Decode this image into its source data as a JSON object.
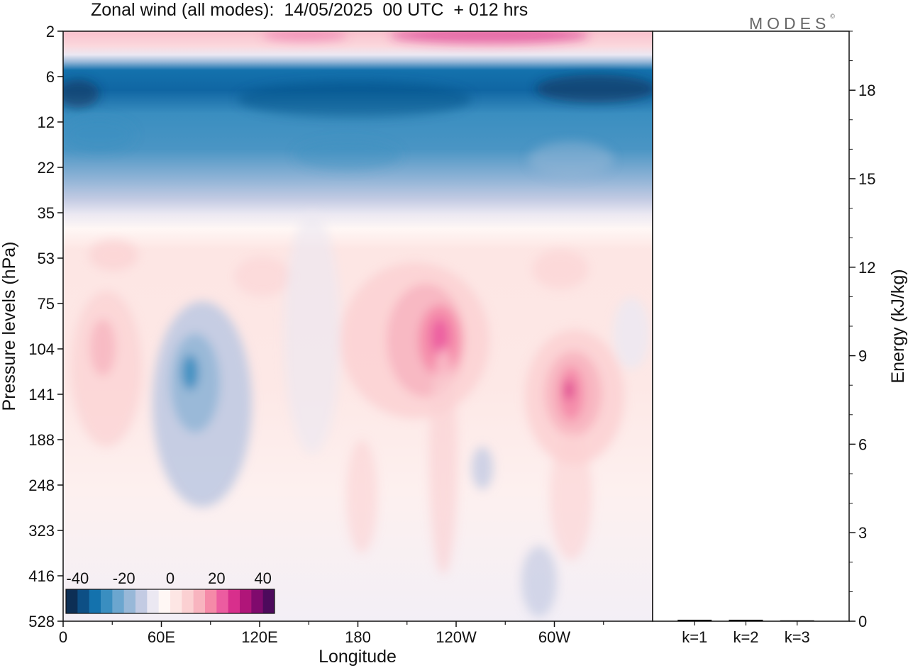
{
  "title": "Zonal wind (all modes):  14/05/2025  00 UTC  + 012 hrs",
  "logo": {
    "text": "MODES",
    "mark": "©"
  },
  "chart_data": [
    {
      "type": "heatmap",
      "title": "Zonal wind (all modes):  14/05/2025  00 UTC  + 012 hrs",
      "xlabel": "Longitude",
      "ylabel": "Pressure levels (hPa)",
      "x_ticks": [
        "0",
        "60E",
        "120E",
        "180",
        "120W",
        "60W"
      ],
      "x_tick_degrees": [
        0,
        60,
        120,
        180,
        240,
        300
      ],
      "xlim": [
        0,
        360
      ],
      "y_ticks": [
        "2",
        "6",
        "12",
        "22",
        "35",
        "53",
        "75",
        "104",
        "141",
        "188",
        "248",
        "323",
        "416",
        "528"
      ],
      "y_scale": "log-like (pressure levels, top = 2 hPa)",
      "colorbar": {
        "tick_labels": [
          "-40",
          "-20",
          "0",
          "20",
          "40"
        ],
        "range": [
          -45,
          45
        ],
        "colors": [
          "#0d2f55",
          "#0d4f85",
          "#1472ad",
          "#3a8ec0",
          "#6ba6cf",
          "#98b8d8",
          "#c3cbe3",
          "#ebe8f2",
          "#fff7f5",
          "#fde6e4",
          "#fbd0d2",
          "#f8b4bf",
          "#f58aa8",
          "#ec5ca0",
          "#d82f8c",
          "#b01579",
          "#800a6d",
          "#4d0a5c"
        ]
      },
      "features": [
        {
          "name": "upper easterly band",
          "pressure_hPa": [
            6,
            20
          ],
          "value_range": [
            -40,
            -25
          ]
        },
        {
          "name": "stratospheric westerly band",
          "pressure_hPa": [
            2,
            4
          ],
          "value_range": [
            15,
            30
          ]
        },
        {
          "name": "jet core",
          "lon_deg": 225,
          "pressure_hPa": 104,
          "value": 25
        },
        {
          "name": "jet core",
          "lon_deg": 305,
          "pressure_hPa": 141,
          "value": 25
        },
        {
          "name": "easterly core",
          "lon_deg": 75,
          "pressure_hPa": 141,
          "value": -25
        }
      ]
    },
    {
      "type": "bar",
      "ylabel": "Energy (kJ/kg)",
      "categories": [
        "k=1",
        "k=2",
        "k=3"
      ],
      "values": [
        0.05,
        0.05,
        0.03
      ],
      "ylim": [
        0,
        20
      ],
      "y_ticks": [
        "0",
        "3",
        "6",
        "9",
        "12",
        "15",
        "18"
      ]
    }
  ]
}
